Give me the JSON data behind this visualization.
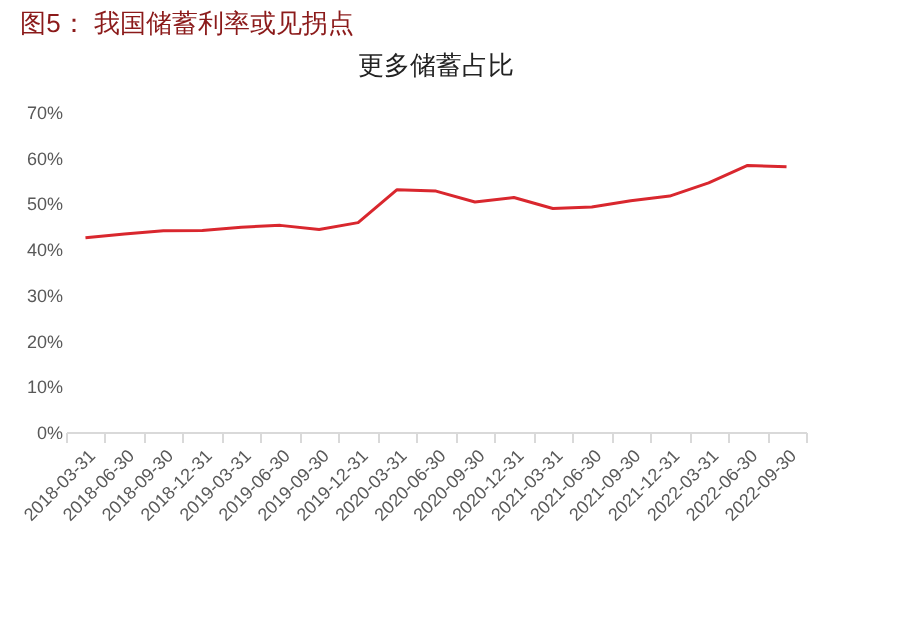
{
  "chart_data": {
    "type": "line",
    "title": "图5：  我国储蓄利率或见拐点",
    "subtitle": "更多储蓄占比",
    "categories": [
      "2018-03-31",
      "2018-06-30",
      "2018-09-30",
      "2018-12-31",
      "2019-03-31",
      "2019-06-30",
      "2019-09-30",
      "2019-12-31",
      "2020-03-31",
      "2020-06-30",
      "2020-09-30",
      "2020-12-31",
      "2021-03-31",
      "2021-06-30",
      "2021-09-30",
      "2021-12-31",
      "2022-03-31",
      "2022-06-30",
      "2022-09-30"
    ],
    "series": [
      {
        "color": "#d9272e",
        "values": [
          42.5,
          43.3,
          44.0,
          44.1,
          44.8,
          45.2,
          44.3,
          45.8,
          53.0,
          52.7,
          50.3,
          51.3,
          48.9,
          49.2,
          50.6,
          51.6,
          54.5,
          58.3,
          58.0
        ]
      }
    ],
    "ylim": [
      0,
      70
    ],
    "yticks": [
      {
        "value": 0,
        "label": "0%"
      },
      {
        "value": 10,
        "label": "10%"
      },
      {
        "value": 20,
        "label": "20%"
      },
      {
        "value": 30,
        "label": "30%"
      },
      {
        "value": 40,
        "label": "40%"
      },
      {
        "value": 50,
        "label": "50%"
      },
      {
        "value": 60,
        "label": "60%"
      },
      {
        "value": 70,
        "label": "70%"
      }
    ],
    "grid": false,
    "legend": false,
    "marker": "none",
    "line_style": "solid"
  }
}
